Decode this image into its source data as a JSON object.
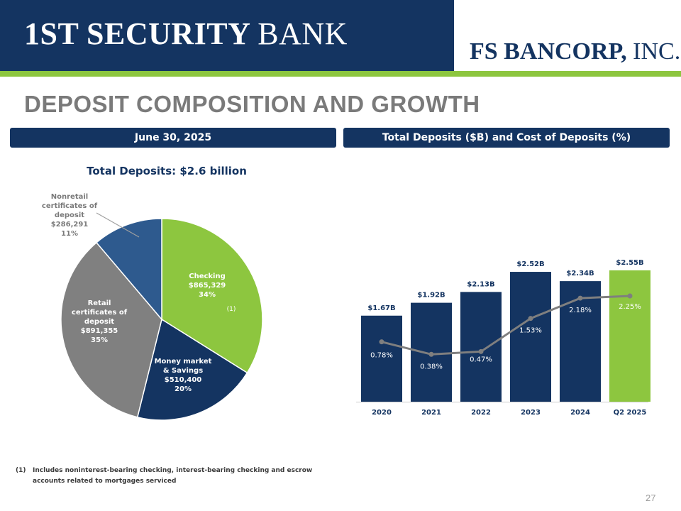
{
  "header": {
    "left_logo_bold": "1ST SECURITY",
    "left_logo_light": "BANK",
    "right_logo_bold": "FS BANCORP,",
    "right_logo_light": "INC."
  },
  "page_title": "DEPOSIT COMPOSITION AND GROWTH",
  "left_panel": {
    "header": "June 30, 2025",
    "total_label": "Total Deposits:  $2.6 billion"
  },
  "right_panel": {
    "header": "Total Deposits ($B) and Cost of Deposits (%)"
  },
  "footnote": {
    "mark": "(1)",
    "line1": "Includes noninterest-bearing  checking, interest-bearing checking and escrow",
    "line2": "accounts related to mortgages serviced"
  },
  "page_number": "27",
  "colors": {
    "navy": "#143461",
    "green": "#8dc63f",
    "gray": "#808080",
    "blue": "#2e5a8e",
    "line": "#7f7f7f"
  },
  "chart_data": [
    {
      "type": "pie",
      "title": "Total Deposits:  $2.6 billion",
      "slices": [
        {
          "label_lines": [
            "Checking",
            "$865,329",
            "34%"
          ],
          "value": 865329,
          "percent": 34,
          "color": "#8dc63f",
          "note": "(1)"
        },
        {
          "label_lines": [
            "Money market",
            "& Savings",
            "$510,400",
            "20%"
          ],
          "value": 510400,
          "percent": 20,
          "color": "#143461"
        },
        {
          "label_lines": [
            "Retail",
            "certificates of",
            "deposit",
            "$891,355",
            "35%"
          ],
          "value": 891355,
          "percent": 35,
          "color": "#808080"
        },
        {
          "label_lines": [
            "Nonretail",
            "certificates of",
            "deposit",
            "$286,291",
            "11%"
          ],
          "value": 286291,
          "percent": 11,
          "color": "#2e5a8e"
        }
      ]
    },
    {
      "type": "bar",
      "title": "Total Deposits ($B) and Cost of Deposits (%)",
      "categories": [
        "2020",
        "2021",
        "2022",
        "2023",
        "2024",
        "Q2 2025"
      ],
      "series": [
        {
          "values": [
            1.67,
            1.92,
            2.13,
            2.52,
            2.34,
            2.55
          ],
          "labels": [
            "$1.67B",
            "$1.92B",
            "$2.13B",
            "$2.52B",
            "$2.34B",
            "$2.55B"
          ]
        },
        {
          "type": "line",
          "values": [
            0.78,
            0.38,
            0.47,
            1.53,
            2.18,
            2.25
          ],
          "labels": [
            "0.78%",
            "0.38%",
            "0.47%",
            "1.53%",
            "2.18%",
            "2.25%"
          ]
        }
      ],
      "bar_colors": [
        "#143461",
        "#143461",
        "#143461",
        "#143461",
        "#143461",
        "#8dc63f"
      ]
    }
  ]
}
